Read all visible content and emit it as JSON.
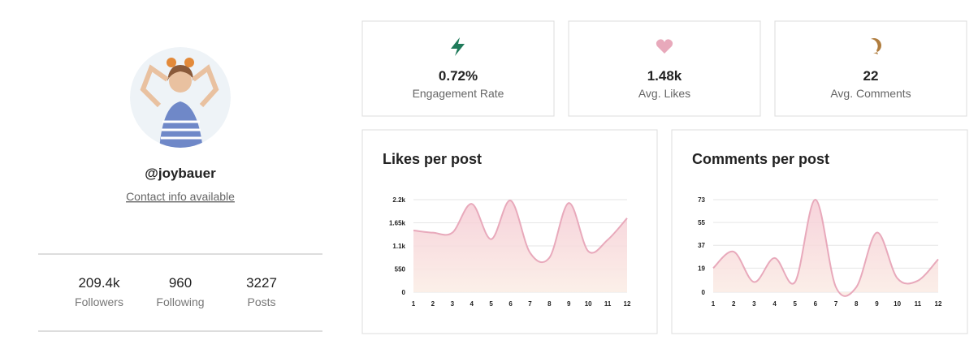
{
  "profile": {
    "handle": "@joybauer",
    "contact": "Contact info available",
    "stats": [
      {
        "value": "209.4k",
        "label": "Followers"
      },
      {
        "value": "960",
        "label": "Following"
      },
      {
        "value": "3227",
        "label": "Posts"
      }
    ]
  },
  "metrics": [
    {
      "value": "0.72%",
      "label": "Engagement Rate"
    },
    {
      "value": "1.48k",
      "label": "Avg. Likes"
    },
    {
      "value": "22",
      "label": "Avg. Comments"
    }
  ],
  "chart_data": [
    {
      "type": "area",
      "title": "Likes per post",
      "color": "#e8a9bb",
      "grid": true,
      "categories": [
        "1",
        "2",
        "3",
        "4",
        "5",
        "6",
        "7",
        "8",
        "9",
        "10",
        "11",
        "12"
      ],
      "values": [
        1470,
        1415,
        1415,
        2100,
        1260,
        2180,
        940,
        820,
        2120,
        975,
        1245,
        1760
      ],
      "ylim": [
        0,
        2200
      ],
      "yticks": [
        0,
        550,
        {
          "value": 1100,
          "label": "1.1k"
        },
        {
          "value": 1650,
          "label": "1.65k"
        },
        {
          "value": 2200,
          "label": "2.2k"
        }
      ]
    },
    {
      "type": "area",
      "title": "Comments per post",
      "color": "#e8a9bb",
      "grid": true,
      "categories": [
        "1",
        "2",
        "3",
        "4",
        "5",
        "6",
        "7",
        "8",
        "9",
        "10",
        "11",
        "12"
      ],
      "values": [
        19,
        32,
        8,
        27,
        8,
        73,
        4,
        4,
        47,
        11,
        9,
        26
      ],
      "ylim": [
        0,
        73
      ],
      "yticks": [
        0,
        19,
        37,
        55,
        73
      ]
    }
  ]
}
